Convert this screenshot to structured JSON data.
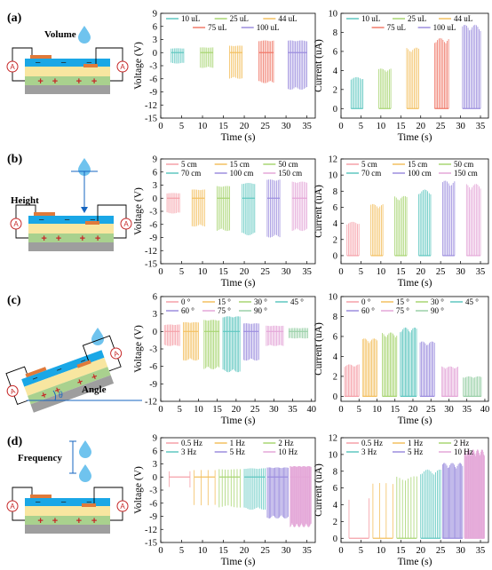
{
  "panels": [
    {
      "label": "(a)",
      "param": "Volume"
    },
    {
      "label": "(b)",
      "param": "Height"
    },
    {
      "label": "(c)",
      "param": "Angle",
      "theta": "θ"
    },
    {
      "label": "(d)",
      "param": "Frequency"
    }
  ],
  "symbols": {
    "ammeter": "A",
    "plus": "+",
    "minus": "−"
  },
  "colors": {
    "device_top": "#1aa7e6",
    "device_yellow": "#f8e6a0",
    "device_green": "#a9d18e",
    "device_base": "#9e9e9e",
    "electrode": "#e07a3a",
    "drop": "#6fc3ee",
    "series_palette": [
      "#5fc7c0",
      "#a8d572",
      "#f3c060",
      "#f07a6a",
      "#9c8ede",
      "#e4a7d8",
      "#9ad0a8"
    ]
  },
  "chart_data": [
    {
      "type": "line",
      "row": 0,
      "signal": "voltage",
      "xlabel": "Time (s)",
      "ylabel": "Voltage (V)",
      "xlim": [
        0,
        37
      ],
      "xticks": [
        0,
        5,
        10,
        15,
        20,
        25,
        30,
        35
      ],
      "ylim": [
        -15,
        9
      ],
      "yticks": [
        9,
        6,
        3,
        0,
        -3,
        -6,
        -9,
        -12,
        -15
      ],
      "legend_cols": 3,
      "series": [
        {
          "name": "10 uL",
          "color": "#5fc7c0",
          "t": [
            2.5,
            5.5
          ],
          "peak": 1.0,
          "trough": -2.5
        },
        {
          "name": "25 uL",
          "color": "#a8d572",
          "t": [
            9.5,
            12.5
          ],
          "peak": 1.2,
          "trough": -3.5
        },
        {
          "name": "44 uL",
          "color": "#f3c060",
          "t": [
            16.5,
            19.5
          ],
          "peak": 1.6,
          "trough": -6.0
        },
        {
          "name": "75 uL",
          "color": "#f07a6a",
          "t": [
            23.5,
            27.0
          ],
          "peak": 2.8,
          "trough": -7.0
        },
        {
          "name": "100 uL",
          "color": "#9c8ede",
          "t": [
            30.5,
            35.0
          ],
          "peak": 2.8,
          "trough": -8.5
        }
      ]
    },
    {
      "type": "line",
      "row": 0,
      "signal": "current",
      "xlabel": "Time (s)",
      "ylabel": "Current (uA)",
      "xlim": [
        0,
        37
      ],
      "xticks": [
        0,
        5,
        10,
        15,
        20,
        25,
        30,
        35
      ],
      "ylim": [
        -1,
        10
      ],
      "yticks": [
        10,
        8,
        6,
        4,
        2,
        0
      ],
      "legend_cols": 3,
      "series": [
        {
          "name": "10 uL",
          "color": "#5fc7c0",
          "t": [
            2.5,
            5.5
          ],
          "peak": 3.3
        },
        {
          "name": "25 uL",
          "color": "#a8d572",
          "t": [
            9.5,
            12.5
          ],
          "peak": 4.2
        },
        {
          "name": "44 uL",
          "color": "#f3c060",
          "t": [
            16.5,
            19.5
          ],
          "peak": 6.4
        },
        {
          "name": "75 uL",
          "color": "#f07a6a",
          "t": [
            23.5,
            27.0
          ],
          "peak": 7.4
        },
        {
          "name": "100 uL",
          "color": "#9c8ede",
          "t": [
            30.5,
            35.0
          ],
          "peak": 8.8
        }
      ]
    },
    {
      "type": "line",
      "row": 1,
      "signal": "voltage",
      "xlabel": "Time (s)",
      "ylabel": "Voltage (V)",
      "xlim": [
        0,
        37
      ],
      "xticks": [
        0,
        5,
        10,
        15,
        20,
        25,
        30,
        35
      ],
      "ylim": [
        -15,
        9
      ],
      "yticks": [
        9,
        6,
        3,
        0,
        -3,
        -6,
        -9,
        -12,
        -15
      ],
      "legend_cols": 3,
      "series": [
        {
          "name": "5 cm",
          "color": "#f5a0a8",
          "t": [
            1.5,
            4.5
          ],
          "peak": 1.2,
          "trough": -3.5
        },
        {
          "name": "15 cm",
          "color": "#f3c060",
          "t": [
            7.5,
            10.5
          ],
          "peak": 2.0,
          "trough": -6.5
        },
        {
          "name": "50 cm",
          "color": "#a8d572",
          "t": [
            13.5,
            16.5
          ],
          "peak": 2.8,
          "trough": -7.5
        },
        {
          "name": "70 cm",
          "color": "#5fc7c0",
          "t": [
            19.5,
            22.5
          ],
          "peak": 3.5,
          "trough": -8.5
        },
        {
          "name": "100 cm",
          "color": "#9c8ede",
          "t": [
            25.5,
            28.5
          ],
          "peak": 4.3,
          "trough": -9.0
        },
        {
          "name": "150 cm",
          "color": "#e4a7d8",
          "t": [
            31.5,
            35.0
          ],
          "peak": 3.8,
          "trough": -7.5
        }
      ]
    },
    {
      "type": "line",
      "row": 1,
      "signal": "current",
      "xlabel": "Time (s)",
      "ylabel": "Current (uA)",
      "xlim": [
        0,
        37
      ],
      "xticks": [
        0,
        5,
        10,
        15,
        20,
        25,
        30,
        35
      ],
      "ylim": [
        -1,
        12
      ],
      "yticks": [
        12,
        10,
        8,
        6,
        4,
        2,
        0
      ],
      "legend_cols": 3,
      "series": [
        {
          "name": "5 cm",
          "color": "#f5a0a8",
          "t": [
            1.5,
            4.5
          ],
          "peak": 4.2
        },
        {
          "name": "15 cm",
          "color": "#f3c060",
          "t": [
            7.5,
            10.5
          ],
          "peak": 6.4
        },
        {
          "name": "50 cm",
          "color": "#a8d572",
          "t": [
            13.5,
            16.5
          ],
          "peak": 7.4
        },
        {
          "name": "70 cm",
          "color": "#5fc7c0",
          "t": [
            19.5,
            22.5
          ],
          "peak": 8.2
        },
        {
          "name": "100 cm",
          "color": "#9c8ede",
          "t": [
            25.5,
            28.5
          ],
          "peak": 9.3
        },
        {
          "name": "150 cm",
          "color": "#e4a7d8",
          "t": [
            31.5,
            35.0
          ],
          "peak": 8.9
        }
      ]
    },
    {
      "type": "line",
      "row": 2,
      "signal": "voltage",
      "xlabel": "Time (s)",
      "ylabel": "Voltage (V)",
      "xlim": [
        0,
        41
      ],
      "xticks": [
        0,
        5,
        10,
        15,
        20,
        25,
        30,
        35,
        40
      ],
      "ylim": [
        -12,
        6
      ],
      "yticks": [
        6,
        3,
        0,
        -3,
        -6,
        -9,
        -12
      ],
      "legend_cols": 4,
      "series": [
        {
          "name": "0 °",
          "color": "#f5a0a8",
          "t": [
            1.0,
            5.0
          ],
          "peak": 1.2,
          "trough": -2.5
        },
        {
          "name": "15 °",
          "color": "#f3c060",
          "t": [
            6.0,
            10.0
          ],
          "peak": 1.6,
          "trough": -5.0
        },
        {
          "name": "30 °",
          "color": "#a8d572",
          "t": [
            11.5,
            15.5
          ],
          "peak": 2.0,
          "trough": -6.5
        },
        {
          "name": "45 °",
          "color": "#5fc7c0",
          "t": [
            16.5,
            21.0
          ],
          "peak": 2.6,
          "trough": -7.0
        },
        {
          "name": "60 °",
          "color": "#9c8ede",
          "t": [
            22.0,
            26.0
          ],
          "peak": 1.4,
          "trough": -5.0
        },
        {
          "name": "75 °",
          "color": "#e4a7d8",
          "t": [
            28.0,
            32.5
          ],
          "peak": 1.0,
          "trough": -2.5
        },
        {
          "name": "90 °",
          "color": "#9ad0a8",
          "t": [
            34.0,
            39.0
          ],
          "peak": 0.6,
          "trough": -1.2
        }
      ]
    },
    {
      "type": "line",
      "row": 2,
      "signal": "current",
      "xlabel": "Time (s)",
      "ylabel": "Current (uA)",
      "xlim": [
        0,
        41
      ],
      "xticks": [
        0,
        5,
        10,
        15,
        20,
        25,
        30,
        35,
        40
      ],
      "ylim": [
        -0.5,
        10
      ],
      "yticks": [
        10,
        8,
        6,
        4,
        2,
        0
      ],
      "legend_cols": 4,
      "series": [
        {
          "name": "0 °",
          "color": "#f5a0a8",
          "t": [
            1.0,
            5.0
          ],
          "peak": 3.2
        },
        {
          "name": "15 °",
          "color": "#f3c060",
          "t": [
            6.0,
            10.0
          ],
          "peak": 5.8
        },
        {
          "name": "30 °",
          "color": "#a8d572",
          "t": [
            11.5,
            15.5
          ],
          "peak": 6.4
        },
        {
          "name": "45 °",
          "color": "#5fc7c0",
          "t": [
            16.5,
            21.0
          ],
          "peak": 6.9
        },
        {
          "name": "60 °",
          "color": "#9c8ede",
          "t": [
            22.0,
            26.0
          ],
          "peak": 5.5
        },
        {
          "name": "75 °",
          "color": "#e4a7d8",
          "t": [
            28.0,
            32.5
          ],
          "peak": 3.0
        },
        {
          "name": "90 °",
          "color": "#9ad0a8",
          "t": [
            34.0,
            39.0
          ],
          "peak": 2.0
        }
      ]
    },
    {
      "type": "line",
      "row": 3,
      "signal": "voltage",
      "xlabel": "Time (s)",
      "ylabel": "Voltage (V)",
      "xlim": [
        0,
        37
      ],
      "xticks": [
        0,
        5,
        10,
        15,
        20,
        25,
        30,
        35
      ],
      "ylim": [
        -15,
        9
      ],
      "yticks": [
        9,
        6,
        3,
        0,
        -3,
        -6,
        -9,
        -12,
        -15
      ],
      "legend_cols": 3,
      "series": [
        {
          "name": "0.5 Hz",
          "color": "#f5a0a8",
          "t": [
            2.0,
            7.0
          ],
          "peak": 1.4,
          "trough": -2.5,
          "n": 2
        },
        {
          "name": "1 Hz",
          "color": "#f3c060",
          "t": [
            8.0,
            13.0
          ],
          "peak": 1.6,
          "trough": -6.5,
          "n": 4
        },
        {
          "name": "2 Hz",
          "color": "#a8d572",
          "t": [
            14.0,
            19.0
          ],
          "peak": 1.8,
          "trough": -7.0,
          "n": 8
        },
        {
          "name": "3 Hz",
          "color": "#5fc7c0",
          "t": [
            20.0,
            25.0
          ],
          "peak": 2.0,
          "trough": -7.5,
          "n": 13
        },
        {
          "name": "5 Hz",
          "color": "#9c8ede",
          "t": [
            25.5,
            30.5
          ],
          "peak": 2.2,
          "trough": -9.5,
          "n": 20
        },
        {
          "name": "10 Hz",
          "color": "#e4a7d8",
          "t": [
            31.0,
            36.0
          ],
          "peak": 2.5,
          "trough": -11.5,
          "n": 34
        }
      ]
    },
    {
      "type": "line",
      "row": 3,
      "signal": "current",
      "xlabel": "Time (s)",
      "ylabel": "Current (uA)",
      "xlim": [
        0,
        37
      ],
      "xticks": [
        0,
        5,
        10,
        15,
        20,
        25,
        30,
        35
      ],
      "ylim": [
        -0.5,
        12
      ],
      "yticks": [
        12,
        10,
        8,
        6,
        4,
        2,
        0
      ],
      "legend_cols": 3,
      "series": [
        {
          "name": "0.5 Hz",
          "color": "#f5a0a8",
          "t": [
            2.0,
            7.0
          ],
          "peak": 5.0,
          "n": 2
        },
        {
          "name": "1 Hz",
          "color": "#f3c060",
          "t": [
            8.0,
            13.0
          ],
          "peak": 6.6,
          "n": 4
        },
        {
          "name": "2 Hz",
          "color": "#a8d572",
          "t": [
            14.0,
            19.0
          ],
          "peak": 7.4,
          "n": 8
        },
        {
          "name": "3 Hz",
          "color": "#5fc7c0",
          "t": [
            20.0,
            25.0
          ],
          "peak": 8.2,
          "n": 13
        },
        {
          "name": "5 Hz",
          "color": "#9c8ede",
          "t": [
            25.5,
            30.5
          ],
          "peak": 9.0,
          "n": 20
        },
        {
          "name": "10 Hz",
          "color": "#e4a7d8",
          "t": [
            31.0,
            36.0
          ],
          "peak": 10.6,
          "n": 34
        }
      ]
    }
  ]
}
